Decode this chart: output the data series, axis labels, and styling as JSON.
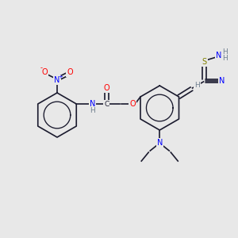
{
  "title": "",
  "bg_color": "#e8e8e8",
  "atom_colors": {
    "C": "#1a1a2e",
    "N": "#0000ff",
    "O": "#ff0000",
    "S": "#808000",
    "H": "#708090",
    "default": "#1a1a2e"
  },
  "bond_color": "#1a1a2e",
  "figsize": [
    3.0,
    3.0
  ],
  "dpi": 100
}
